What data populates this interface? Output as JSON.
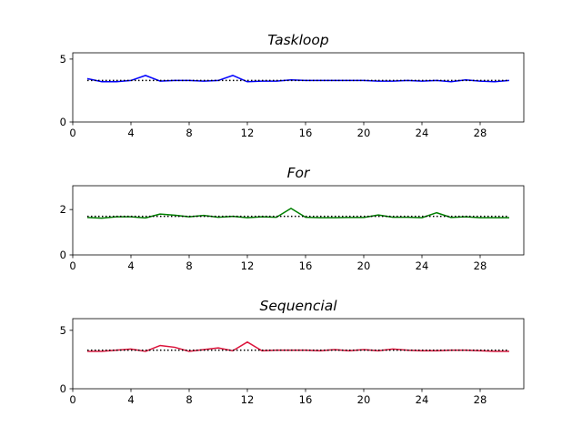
{
  "chart_data": [
    {
      "type": "line",
      "title": "Taskloop",
      "xlim": [
        0,
        31
      ],
      "ylim": [
        0,
        5.5
      ],
      "xticks": [
        0,
        4,
        8,
        12,
        16,
        20,
        24,
        28
      ],
      "yticks": [
        0,
        5
      ],
      "x": [
        1,
        2,
        3,
        4,
        5,
        6,
        7,
        8,
        9,
        10,
        11,
        12,
        13,
        14,
        15,
        16,
        17,
        18,
        19,
        20,
        21,
        22,
        23,
        24,
        25,
        26,
        27,
        28,
        29,
        30
      ],
      "series": [
        {
          "color": "#0000ff",
          "style": "solid",
          "values": [
            3.45,
            3.2,
            3.2,
            3.3,
            3.7,
            3.25,
            3.3,
            3.3,
            3.25,
            3.3,
            3.7,
            3.2,
            3.25,
            3.25,
            3.35,
            3.3,
            3.3,
            3.3,
            3.3,
            3.3,
            3.25,
            3.25,
            3.3,
            3.25,
            3.3,
            3.2,
            3.35,
            3.25,
            3.2,
            3.3
          ]
        },
        {
          "color": "#000000",
          "style": "dotted",
          "values": [
            3.3,
            3.3,
            3.3,
            3.3,
            3.3,
            3.3,
            3.3,
            3.3,
            3.3,
            3.3,
            3.3,
            3.3,
            3.3,
            3.3,
            3.3,
            3.3,
            3.3,
            3.3,
            3.3,
            3.3,
            3.3,
            3.3,
            3.3,
            3.3,
            3.3,
            3.3,
            3.3,
            3.3,
            3.3,
            3.3
          ]
        }
      ]
    },
    {
      "type": "line",
      "title": "For",
      "xlim": [
        0,
        31
      ],
      "ylim": [
        0,
        3.05
      ],
      "xticks": [
        0,
        4,
        8,
        12,
        16,
        20,
        24,
        28
      ],
      "yticks": [
        0,
        2
      ],
      "x": [
        1,
        2,
        3,
        4,
        5,
        6,
        7,
        8,
        9,
        10,
        11,
        12,
        13,
        14,
        15,
        16,
        17,
        18,
        19,
        20,
        21,
        22,
        23,
        24,
        25,
        26,
        27,
        28,
        29,
        30
      ],
      "series": [
        {
          "color": "#008000",
          "style": "solid",
          "values": [
            1.65,
            1.62,
            1.68,
            1.68,
            1.63,
            1.8,
            1.75,
            1.68,
            1.74,
            1.66,
            1.7,
            1.64,
            1.68,
            1.66,
            2.05,
            1.66,
            1.64,
            1.64,
            1.65,
            1.65,
            1.76,
            1.66,
            1.66,
            1.64,
            1.86,
            1.65,
            1.68,
            1.64,
            1.64,
            1.64
          ]
        },
        {
          "color": "#000000",
          "style": "dotted",
          "values": [
            1.7,
            1.7,
            1.7,
            1.7,
            1.7,
            1.7,
            1.7,
            1.7,
            1.7,
            1.7,
            1.7,
            1.7,
            1.7,
            1.7,
            1.7,
            1.7,
            1.7,
            1.7,
            1.7,
            1.7,
            1.7,
            1.7,
            1.7,
            1.7,
            1.7,
            1.7,
            1.7,
            1.7,
            1.7,
            1.7
          ]
        }
      ]
    },
    {
      "type": "line",
      "title": "Sequencial",
      "xlim": [
        0,
        31
      ],
      "ylim": [
        0,
        6.0
      ],
      "xticks": [
        0,
        4,
        8,
        12,
        16,
        20,
        24,
        28
      ],
      "yticks": [
        0,
        5
      ],
      "x": [
        1,
        2,
        3,
        4,
        5,
        6,
        7,
        8,
        9,
        10,
        11,
        12,
        13,
        14,
        15,
        16,
        17,
        18,
        19,
        20,
        21,
        22,
        23,
        24,
        25,
        26,
        27,
        28,
        29,
        30
      ],
      "series": [
        {
          "color": "#dc143c",
          "style": "solid",
          "values": [
            3.2,
            3.2,
            3.3,
            3.4,
            3.2,
            3.7,
            3.55,
            3.2,
            3.35,
            3.5,
            3.25,
            4.0,
            3.25,
            3.3,
            3.3,
            3.3,
            3.25,
            3.35,
            3.25,
            3.35,
            3.25,
            3.4,
            3.3,
            3.25,
            3.25,
            3.3,
            3.3,
            3.25,
            3.2,
            3.2
          ]
        },
        {
          "color": "#000000",
          "style": "dotted",
          "values": [
            3.3,
            3.3,
            3.3,
            3.3,
            3.3,
            3.3,
            3.3,
            3.3,
            3.3,
            3.3,
            3.3,
            3.3,
            3.3,
            3.3,
            3.3,
            3.3,
            3.3,
            3.3,
            3.3,
            3.3,
            3.3,
            3.3,
            3.3,
            3.3,
            3.3,
            3.3,
            3.3,
            3.3,
            3.3,
            3.3
          ]
        }
      ]
    }
  ]
}
